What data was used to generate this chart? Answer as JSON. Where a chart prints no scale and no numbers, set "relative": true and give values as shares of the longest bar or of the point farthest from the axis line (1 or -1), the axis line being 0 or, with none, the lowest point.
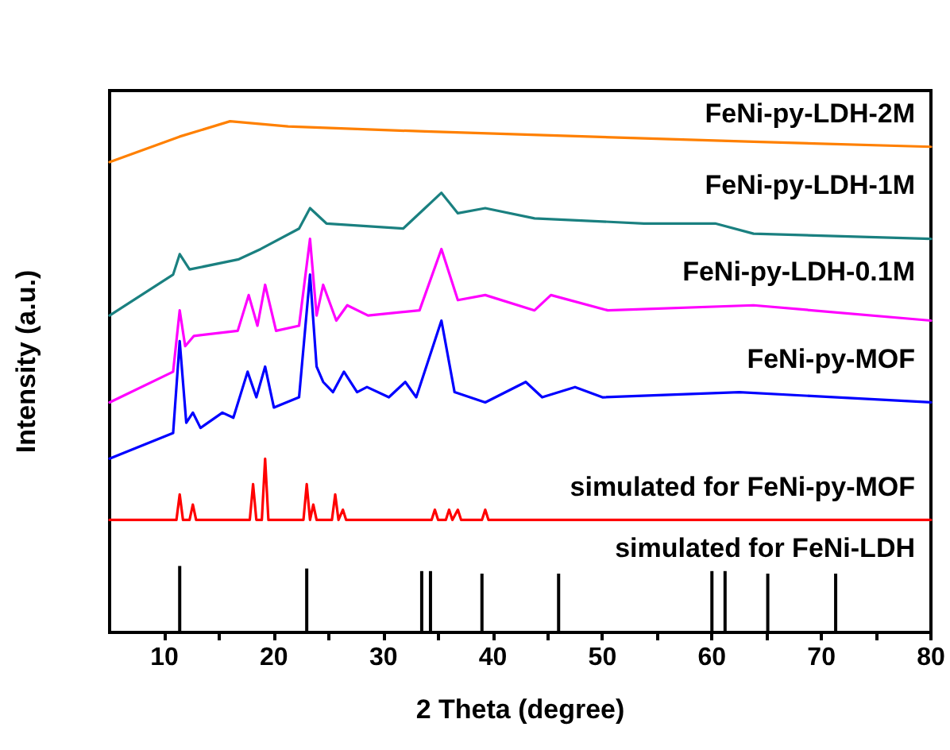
{
  "chart_data": {
    "type": "line",
    "xlabel": "2 Theta (degree)",
    "ylabel": "Intensity (a.u.)",
    "relative": true,
    "tick_labels": "x",
    "marker": "none",
    "line_style": "solid",
    "xlim": [
      5,
      80
    ],
    "xticks": [
      10,
      {
        "value": 15,
        "label": null
      },
      20,
      {
        "value": 25,
        "label": null
      },
      30,
      {
        "value": 35,
        "label": null
      },
      40,
      {
        "value": 45,
        "label": null
      },
      50,
      {
        "value": 55,
        "label": null
      },
      60,
      {
        "value": 65,
        "label": null
      },
      70,
      {
        "value": 75,
        "label": null
      },
      80
    ],
    "series": [
      {
        "name": "FeNi-py-LDH-2M",
        "color": "#ff8000",
        "x": [
          5,
          11.4,
          16,
          21.3,
          33.8,
          48.7,
          63.8,
          80
        ],
        "values": [
          0.92,
          0.97,
          1,
          0.99,
          0.98,
          0.97,
          0.96,
          0.95
        ]
      },
      {
        "name": "FeNi-py-LDH-1M",
        "color": "#1a8080",
        "x": [
          5,
          10.8,
          11.4,
          12.3,
          16.8,
          18.8,
          22.3,
          23.3,
          24.8,
          31.8,
          33.8,
          35.3,
          36.8,
          39.3,
          43.8,
          53.8,
          60.3,
          63.8,
          80
        ],
        "values": [
          0.62,
          0.7,
          0.74,
          0.71,
          0.73,
          0.75,
          0.79,
          0.83,
          0.8,
          0.79,
          0.83,
          0.86,
          0.82,
          0.83,
          0.81,
          0.8,
          0.8,
          0.78,
          0.77
        ]
      },
      {
        "name": "FeNi-py-LDH-0.1M",
        "color": "#ff00ff",
        "x": [
          5,
          10.8,
          11.4,
          11.9,
          12.7,
          16.7,
          17.7,
          18.5,
          19.2,
          20.2,
          22.3,
          23.3,
          23.9,
          24.5,
          25.7,
          26.7,
          28.6,
          33.3,
          35.3,
          36.8,
          39.3,
          43.8,
          45.3,
          50.5,
          63.8,
          80
        ],
        "values": [
          0.45,
          0.51,
          0.63,
          0.56,
          0.58,
          0.59,
          0.66,
          0.6,
          0.68,
          0.59,
          0.6,
          0.77,
          0.62,
          0.68,
          0.61,
          0.64,
          0.62,
          0.63,
          0.75,
          0.65,
          0.66,
          0.63,
          0.66,
          0.63,
          0.64,
          0.61
        ]
      },
      {
        "name": "FeNi-py-MOF",
        "color": "#0000ff",
        "x": [
          5,
          10.8,
          11.4,
          12,
          12.6,
          13.3,
          15.3,
          16.3,
          17.6,
          18.4,
          19.2,
          20,
          22.3,
          23.3,
          23.9,
          24.5,
          25.4,
          26.4,
          27.6,
          28.5,
          30.5,
          32,
          33,
          35.3,
          36.5,
          39.3,
          43,
          44.5,
          47.5,
          50,
          62.5,
          80
        ],
        "values": [
          0.34,
          0.39,
          0.57,
          0.41,
          0.43,
          0.4,
          0.43,
          0.42,
          0.51,
          0.46,
          0.52,
          0.44,
          0.46,
          0.7,
          0.52,
          0.49,
          0.47,
          0.51,
          0.47,
          0.48,
          0.46,
          0.49,
          0.46,
          0.61,
          0.47,
          0.45,
          0.49,
          0.46,
          0.48,
          0.46,
          0.47,
          0.45
        ]
      },
      {
        "name": "simulated for FeNi-py-MOF",
        "color": "#ff0000",
        "x": [
          5,
          11.1,
          11.4,
          11.7,
          12.3,
          12.6,
          12.9,
          17.8,
          18.1,
          18.4,
          18.9,
          19.2,
          19.5,
          22.7,
          23,
          23.3,
          23.6,
          23.9,
          25.3,
          25.6,
          25.9,
          26.3,
          26.6,
          34.4,
          34.7,
          35,
          35.7,
          36,
          36.3,
          36.8,
          37.1,
          39,
          39.3,
          39.6,
          80
        ],
        "values": [
          0.22,
          0.22,
          0.27,
          0.22,
          0.22,
          0.25,
          0.22,
          0.22,
          0.29,
          0.22,
          0.22,
          0.34,
          0.22,
          0.22,
          0.29,
          0.22,
          0.25,
          0.22,
          0.22,
          0.27,
          0.22,
          0.24,
          0.22,
          0.22,
          0.24,
          0.22,
          0.22,
          0.24,
          0.22,
          0.24,
          0.22,
          0.22,
          0.24,
          0.22,
          0.22
        ]
      },
      {
        "name": "simulated for FeNi-LDH",
        "type": "bar",
        "color": "#000000",
        "x": [
          11.4,
          23,
          33.5,
          34.3,
          39,
          46,
          60,
          61.2,
          65.1,
          71.3
        ],
        "values": [
          0.13,
          0.125,
          0.12,
          0.12,
          0.115,
          0.115,
          0.12,
          0.12,
          0.115,
          0.115
        ]
      }
    ]
  }
}
